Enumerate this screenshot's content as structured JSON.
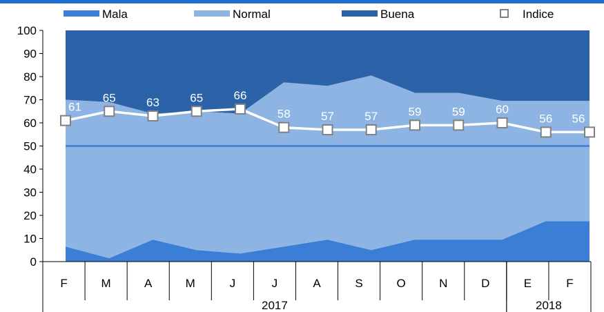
{
  "chart_data": {
    "type": "area",
    "categories": [
      "F",
      "M",
      "A",
      "M",
      "J",
      "J",
      "A",
      "S",
      "O",
      "N",
      "D",
      "E",
      "F"
    ],
    "year_groups": [
      {
        "label": "2017",
        "start": 0,
        "end": 10
      },
      {
        "label": "2018",
        "start": 11,
        "end": 12
      }
    ],
    "ylim": [
      0,
      100
    ],
    "yticks": [
      0,
      10,
      20,
      30,
      40,
      50,
      60,
      70,
      80,
      90,
      100
    ],
    "reference_line": 50,
    "series": [
      {
        "name": "Mala",
        "color": "#3a7fd5",
        "values": [
          6.5,
          1.5,
          9.5,
          5,
          3.5,
          6.5,
          9.5,
          5,
          9.5,
          9.5,
          9.5,
          17.5,
          17.5
        ]
      },
      {
        "name": "Normal",
        "color": "#8db4e2",
        "values": [
          63.5,
          67.5,
          54.5,
          60,
          60.5,
          71,
          66.5,
          75.5,
          63.5,
          63.5,
          60,
          52,
          52
        ]
      },
      {
        "name": "Buena",
        "color": "#2c63a8",
        "values": [
          30,
          31,
          36,
          35,
          36,
          22.5,
          24,
          19.5,
          27,
          27,
          30.5,
          30.5,
          30.5
        ]
      }
    ],
    "index_series": {
      "name": "Indice",
      "values": [
        61,
        65,
        63,
        65,
        66,
        58,
        57,
        57,
        59,
        59,
        60,
        56,
        56
      ],
      "labels": [
        "61",
        "65",
        "63",
        "65",
        "66",
        "58",
        "57",
        "57",
        "59",
        "59",
        "60",
        "56",
        "56"
      ]
    },
    "legend_position": "top",
    "header_bar_color": "#1f6fd1"
  }
}
